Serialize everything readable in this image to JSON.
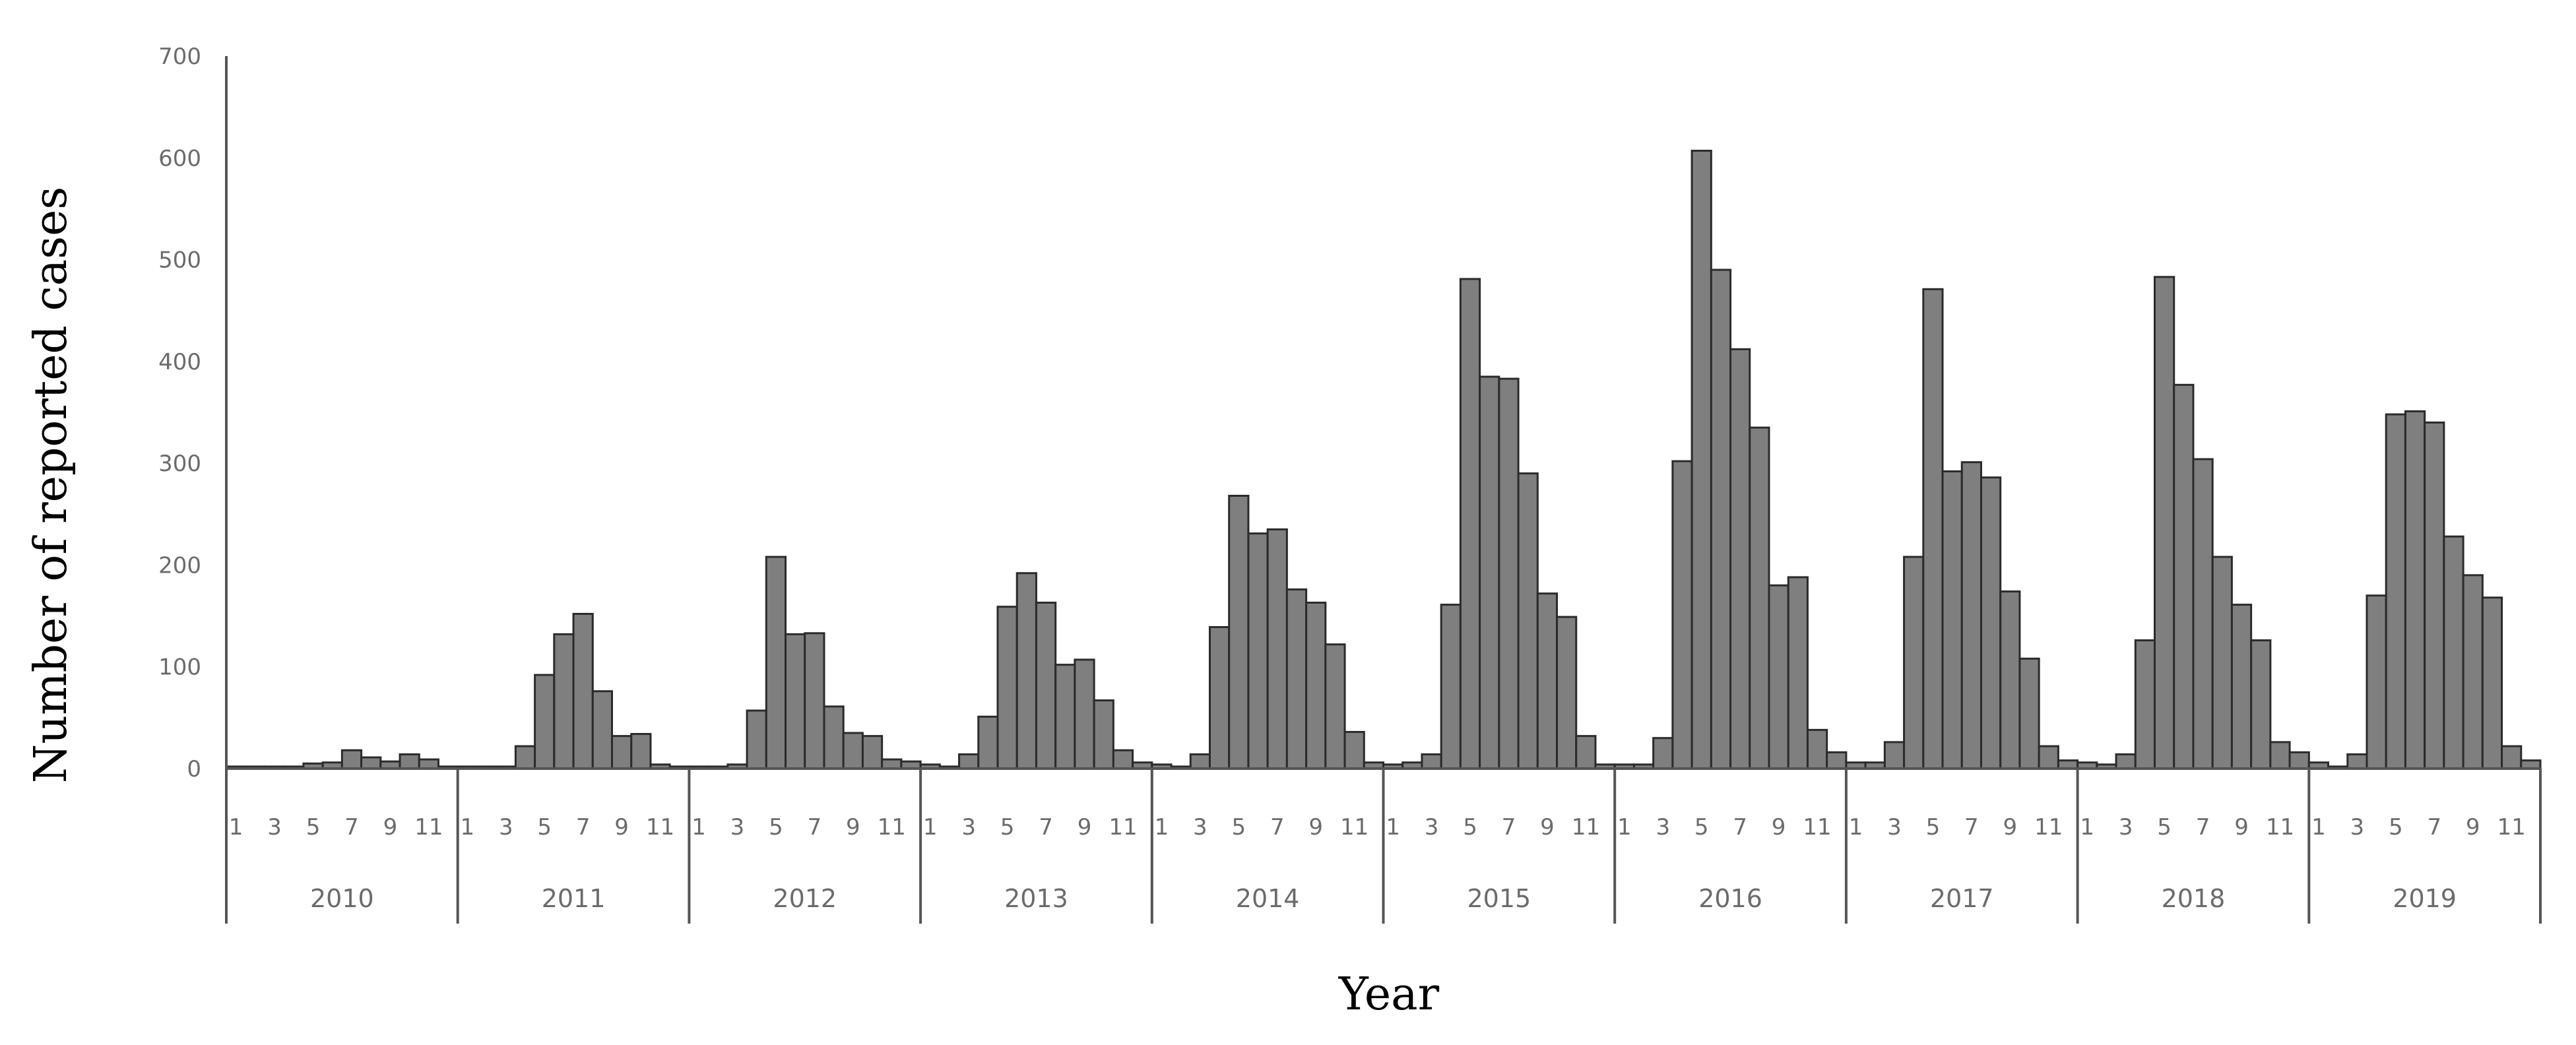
{
  "chart_data": {
    "type": "bar",
    "title": "",
    "xlabel": "Year",
    "ylabel": "Number of reported cases",
    "ylim": [
      0,
      700
    ],
    "yticks": [
      0,
      100,
      200,
      300,
      400,
      500,
      600,
      700
    ],
    "month_tick_labels": [
      "1",
      "3",
      "5",
      "7",
      "9",
      "11"
    ],
    "grid": false,
    "bar_color": "#7f7f7f",
    "bar_edge_color": "#2b2b2b",
    "series": [
      {
        "years": [
          {
            "year": "2010",
            "values": [
              2,
              2,
              2,
              2,
              5,
              6,
              18,
              11,
              7,
              14,
              9,
              2
            ]
          },
          {
            "year": "2011",
            "values": [
              2,
              2,
              2,
              22,
              92,
              132,
              152,
              76,
              32,
              34,
              4,
              2
            ]
          },
          {
            "year": "2012",
            "values": [
              2,
              2,
              4,
              57,
              208,
              132,
              133,
              61,
              35,
              32,
              9,
              7
            ]
          },
          {
            "year": "2013",
            "values": [
              4,
              2,
              14,
              51,
              159,
              192,
              163,
              102,
              107,
              67,
              18,
              6
            ]
          },
          {
            "year": "2014",
            "values": [
              4,
              2,
              14,
              139,
              268,
              231,
              235,
              176,
              163,
              122,
              36,
              6
            ]
          },
          {
            "year": "2015",
            "values": [
              4,
              6,
              14,
              161,
              481,
              385,
              383,
              290,
              172,
              149,
              32,
              4
            ]
          },
          {
            "year": "2016",
            "values": [
              4,
              4,
              30,
              302,
              607,
              490,
              412,
              335,
              180,
              188,
              38,
              16
            ]
          },
          {
            "year": "2017",
            "values": [
              6,
              6,
              26,
              208,
              471,
              292,
              301,
              286,
              174,
              108,
              22,
              8
            ]
          },
          {
            "year": "2018",
            "values": [
              6,
              4,
              14,
              126,
              483,
              377,
              304,
              208,
              161,
              126,
              26,
              16
            ]
          },
          {
            "year": "2019",
            "values": [
              6,
              2,
              14,
              170,
              348,
              351,
              340,
              228,
              190,
              168,
              22,
              8
            ]
          }
        ]
      }
    ]
  }
}
